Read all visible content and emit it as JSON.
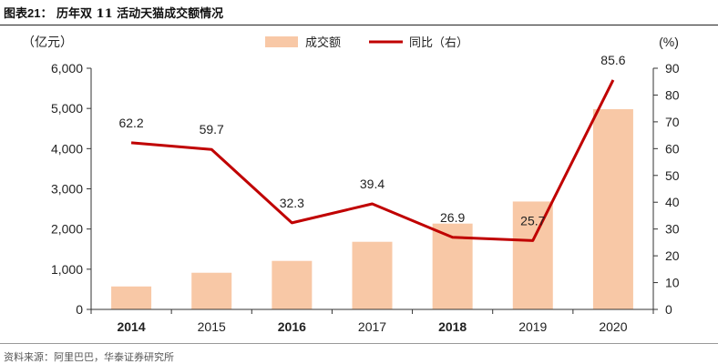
{
  "header": {
    "title_prefix": "图表",
    "title_number": "21",
    "title_colon": "：",
    "title_text": "历年双 11 活动天猫成交额情况"
  },
  "footer": {
    "source": "资料来源：阿里巴巴，华泰证券研究所"
  },
  "colors": {
    "bar": "#F8C8A6",
    "line": "#C00000",
    "axis": "#333333"
  },
  "chart_data": {
    "type": "bar",
    "title": "历年双 11 活动天猫成交额情况",
    "categories": [
      "2014",
      "2015",
      "2016",
      "2017",
      "2018",
      "2019",
      "2020"
    ],
    "series": [
      {
        "name": "成交额",
        "type": "bar",
        "axis": "left",
        "values": [
          571,
          912,
          1207,
          1682,
          2135,
          2684,
          4982
        ]
      },
      {
        "name": "同比（右）",
        "type": "line",
        "axis": "right",
        "values": [
          62.2,
          59.7,
          32.3,
          39.4,
          26.9,
          25.7,
          85.6
        ]
      }
    ],
    "data_labels": [
      "62.2",
      "59.7",
      "32.3",
      "39.4",
      "26.9",
      "25.7",
      "85.6"
    ],
    "left_axis": {
      "unit": "（亿元）",
      "ylim": [
        0,
        6000
      ],
      "ticks": [
        "0",
        "1,000",
        "2,000",
        "3,000",
        "4,000",
        "5,000",
        "6,000"
      ]
    },
    "right_axis": {
      "unit": "(%)",
      "ylim": [
        0,
        90
      ],
      "ticks": [
        "0",
        "10",
        "20",
        "30",
        "40",
        "50",
        "60",
        "70",
        "80",
        "90"
      ]
    },
    "legend": {
      "position": "top-center",
      "items": [
        "成交额",
        "同比（右）"
      ]
    },
    "bold_categories": [
      "2014",
      "2016",
      "2018"
    ]
  }
}
